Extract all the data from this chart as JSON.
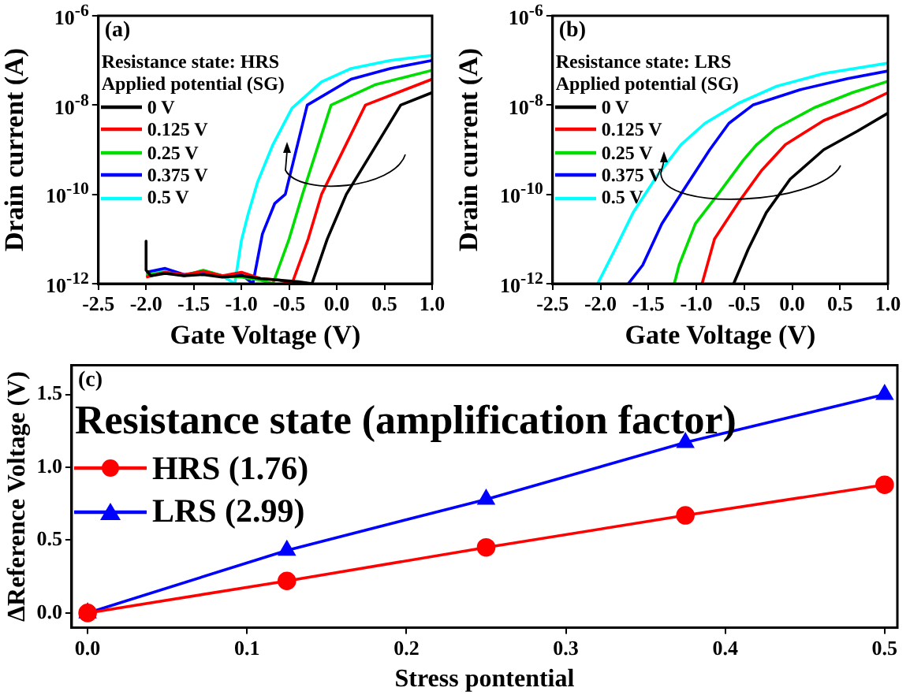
{
  "chart_data": [
    {
      "type": "line",
      "annotations": [
        "(a)",
        "Resistance state: HRS"
      ],
      "legend_title": "Applied potential (SG)",
      "xlabel": "Gate Voltage (V)",
      "ylabel": "Drain current (A)",
      "log": "y",
      "legend": "left",
      "marker": "none",
      "grid": false,
      "xlim": [
        -2.5,
        1.0
      ],
      "xticks": [
        -2.5,
        {
          "value": -2,
          "label": "-2.0"
        },
        -1.5,
        {
          "value": -1,
          "label": "-1.0"
        },
        -0.5,
        {
          "value": 0,
          "label": "0.0"
        },
        0.5,
        {
          "value": 1,
          "label": "1.0"
        }
      ],
      "ylim": [
        1e-12,
        1e-06
      ],
      "yticks": [
        {
          "value": 1e-12,
          "label": "10$^{-12}$"
        },
        {
          "value": 1e-10,
          "label": "10$^{-10}$"
        },
        {
          "value": 1e-08,
          "label": "10$^{-8}$"
        },
        {
          "value": 1e-06,
          "label": "10$^{-6}$"
        }
      ],
      "series": [
        {
          "name": "0 V",
          "color": "#000000",
          "x": [
            -2,
            -2,
            -1.95,
            -1.8,
            -1.6,
            -1.4,
            -1.2,
            -1.0,
            -0.8,
            -0.6,
            -0.4,
            -0.26,
            -0.1,
            0.1,
            0.67,
            1.0
          ],
          "values": [
            9e-12,
            2e-12,
            1.5e-12,
            1.7e-12,
            1.5e-12,
            1.6e-12,
            1.4e-12,
            1.5e-12,
            1.3e-12,
            1.2e-12,
            1.1e-12,
            1e-12,
            1e-11,
            1e-10,
            1e-08,
            1.9e-08
          ]
        },
        {
          "name": "0.125 V",
          "color": "#ff0000",
          "x": [
            -2,
            -1.8,
            -1.6,
            -1.4,
            -1.2,
            -1.0,
            -0.8,
            -0.6,
            -0.47,
            -0.3,
            -0.16,
            0.3,
            1.0
          ],
          "values": [
            1.4e-12,
            1.8e-12,
            1.6e-12,
            1.9e-12,
            1.5e-12,
            1.8e-12,
            1.3e-12,
            1.2e-12,
            1e-12,
            1e-11,
            1e-10,
            1e-08,
            3.8e-08
          ]
        },
        {
          "name": "0.25 V",
          "color": "#00dd00",
          "x": [
            -2,
            -1.8,
            -1.6,
            -1.4,
            -1.2,
            -1.0,
            -0.8,
            -0.67,
            -0.5,
            -0.36,
            -0.06,
            0.41,
            1.0
          ],
          "values": [
            1.6e-12,
            1.8e-12,
            1.5e-12,
            2e-12,
            1.5e-12,
            1.4e-12,
            1.2e-12,
            1e-12,
            1e-11,
            1e-10,
            1e-08,
            2.9e-08,
            6e-08
          ]
        },
        {
          "name": "0.375 V",
          "color": "#0000ff",
          "x": [
            -2,
            -1.8,
            -1.6,
            -1.4,
            -1.2,
            -1.0,
            -0.88,
            -0.78,
            -0.65,
            -0.54,
            -0.31,
            0.15,
            0.56,
            1.0
          ],
          "values": [
            1.8e-12,
            2.2e-12,
            1.6e-12,
            1.8e-12,
            1.5e-12,
            1.6e-12,
            1e-12,
            1.3e-11,
            6.3e-11,
            1e-10,
            1e-08,
            3.8e-08,
            6.6e-08,
            1e-07
          ]
        },
        {
          "name": "0.5 V",
          "color": "#00ffff",
          "x": [
            -2,
            -1.8,
            -1.6,
            -1.4,
            -1.2,
            -1.07,
            -1.0,
            -0.93,
            -0.83,
            -0.67,
            -0.47,
            -0.16,
            0.15,
            0.56,
            1.0
          ],
          "values": [
            1.5e-12,
            2e-12,
            1.5e-12,
            2e-12,
            1.5e-12,
            1e-12,
            9.3e-12,
            3.6e-11,
            1.9e-10,
            1.3e-09,
            8.5e-09,
            3.3e-08,
            6.6e-08,
            1e-07,
            1.3e-07
          ]
        }
      ]
    },
    {
      "type": "line",
      "annotations": [
        "(b)",
        "Resistance state: LRS"
      ],
      "legend_title": "Applied potential (SG)",
      "xlabel": "Gate Voltage (V)",
      "ylabel": "Drain current (A)",
      "log": "y",
      "legend": "left",
      "marker": "none",
      "grid": false,
      "xlim": [
        -2.5,
        1.0
      ],
      "xticks": [
        -2.5,
        {
          "value": -2,
          "label": "-2.0"
        },
        -1.5,
        {
          "value": -1,
          "label": "-1.0"
        },
        -0.5,
        {
          "value": 0,
          "label": "0.0"
        },
        0.5,
        {
          "value": 1,
          "label": "1.0"
        }
      ],
      "ylim": [
        1e-12,
        1e-06
      ],
      "yticks": [
        {
          "value": 1e-12,
          "label": "10$^{-12}$"
        },
        {
          "value": 1e-10,
          "label": "10$^{-10}$"
        },
        {
          "value": 1e-08,
          "label": "10$^{-8}$"
        },
        {
          "value": 1e-06,
          "label": "10$^{-6}$"
        }
      ],
      "series": [
        {
          "name": "0 V",
          "color": "#000000",
          "x": [
            -0.61,
            -0.46,
            -0.27,
            -0.02,
            0.33,
            0.68,
            1.0
          ],
          "values": [
            1e-12,
            5.8e-12,
            3.9e-11,
            2.2e-10,
            1e-09,
            2.6e-09,
            6.6e-09
          ]
        },
        {
          "name": "0.125 V",
          "color": "#ff0000",
          "x": [
            -0.94,
            -0.81,
            -0.56,
            -0.32,
            -0.07,
            0.33,
            0.73,
            1.0
          ],
          "values": [
            1e-12,
            1e-11,
            6.6e-11,
            3.4e-10,
            1.3e-09,
            4.5e-09,
            1e-08,
            1.9e-08
          ]
        },
        {
          "name": "0.25 V",
          "color": "#00dd00",
          "x": [
            -1.23,
            -1.18,
            -1.01,
            -0.76,
            -0.51,
            -0.37,
            -0.17,
            0.23,
            0.63,
            1.0
          ],
          "values": [
            1e-12,
            2.6e-12,
            2.2e-11,
            1.1e-10,
            5.8e-10,
            1.3e-09,
            3e-09,
            8.7e-09,
            1.9e-08,
            3.4e-08
          ]
        },
        {
          "name": "0.375 V",
          "color": "#0000ff",
          "x": [
            -1.71,
            -1.56,
            -1.36,
            -1.11,
            -0.86,
            -0.66,
            -0.41,
            0.08,
            0.58,
            1.0
          ],
          "values": [
            1e-12,
            2.6e-12,
            2.2e-11,
            1.5e-10,
            1e-09,
            3.9e-09,
            1e-08,
            2.2e-08,
            3.9e-08,
            5.8e-08
          ]
        },
        {
          "name": "0.5 V",
          "color": "#00ffff",
          "x": [
            -2.03,
            -1.85,
            -1.66,
            -1.41,
            -1.16,
            -0.91,
            -0.56,
            -0.17,
            0.33,
            1.0
          ],
          "values": [
            1e-12,
            5.8e-12,
            3.9e-11,
            2.6e-10,
            1.3e-09,
            3.9e-09,
            1.1e-08,
            2.6e-08,
            5.1e-08,
            8.7e-08
          ]
        }
      ]
    },
    {
      "type": "line",
      "annotations": [
        "(c)"
      ],
      "legend_title": "Resistance state (amplification factor)",
      "xlabel": "Stress pontential",
      "ylabel": "ΔReference Voltage (V)",
      "legend": "top left",
      "grid": false,
      "x": [
        0,
        0.125,
        0.25,
        0.375,
        0.5
      ],
      "xlim": [
        -0.01,
        0.508
      ],
      "xticks": [
        {
          "value": 0,
          "label": "0.0"
        },
        0.1,
        0.2,
        0.3,
        0.4,
        0.5
      ],
      "ylim": [
        -0.1,
        1.7
      ],
      "yticks": [
        {
          "value": 0,
          "label": "0.0"
        },
        0.5,
        {
          "value": 1,
          "label": "1.0"
        },
        1.5
      ],
      "series": [
        {
          "name": "HRS (1.76)",
          "color": "#ff0000",
          "marker": "circle",
          "values": [
            0,
            0.22,
            0.45,
            0.67,
            0.88
          ]
        },
        {
          "name": "LRS (2.99)",
          "color": "#0000ff",
          "marker": "triangle",
          "values": [
            0,
            0.43,
            0.78,
            1.17,
            1.5
          ]
        }
      ]
    }
  ]
}
